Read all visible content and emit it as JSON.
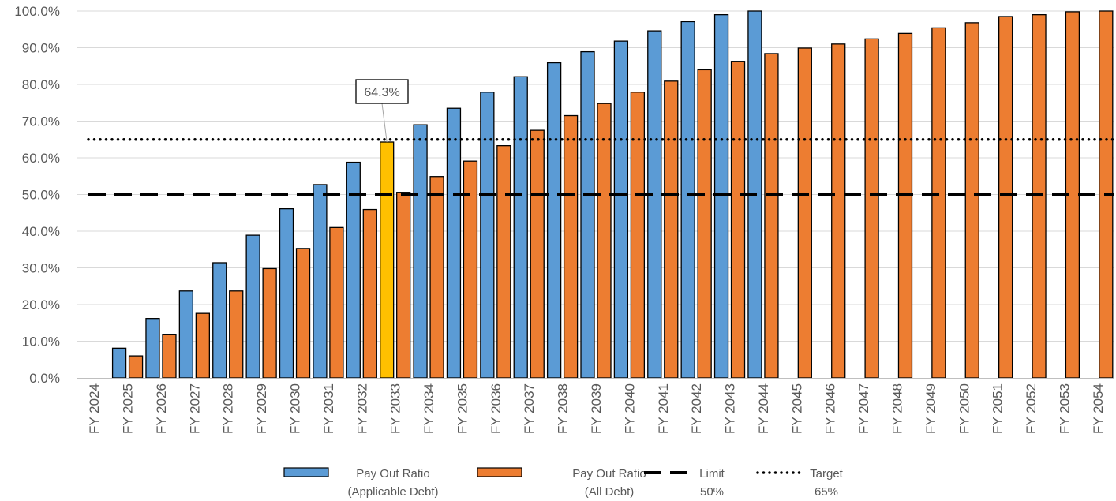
{
  "chart_data": {
    "type": "bar",
    "categories": [
      "FY 2024",
      "FY 2025",
      "FY 2026",
      "FY 2027",
      "FY 2028",
      "FY 2029",
      "FY 2030",
      "FY 2031",
      "FY 2032",
      "FY 2033",
      "FY 2034",
      "FY 2035",
      "FY 2036",
      "FY 2037",
      "FY 2038",
      "FY 2039",
      "FY 2040",
      "FY 2041",
      "FY 2042",
      "FY 2043",
      "FY 2044",
      "FY 2045",
      "FY 2046",
      "FY 2047",
      "FY 2048",
      "FY 2049",
      "FY 2050",
      "FY 2051",
      "FY 2052",
      "FY 2053",
      "FY 2054"
    ],
    "series": [
      {
        "name": "Pay Out Ratio (Applicable Debt)",
        "name_lines": [
          "Pay Out Ratio",
          "(Applicable Debt)"
        ],
        "color": "#5B9BD5",
        "highlight": {
          "category": "FY 2033",
          "color": "#FFC000"
        },
        "values": [
          null,
          8.1,
          16.2,
          23.7,
          31.4,
          38.9,
          46.1,
          52.7,
          58.8,
          64.3,
          69.0,
          73.5,
          77.9,
          82.1,
          85.9,
          88.9,
          91.8,
          94.6,
          97.1,
          99.0,
          100.0,
          null,
          null,
          null,
          null,
          null,
          null,
          null,
          null,
          null,
          null
        ]
      },
      {
        "name": "Pay Out Ratio (All Debt)",
        "name_lines": [
          "Pay Out Ratio",
          "(All Debt)"
        ],
        "color": "#ED7D31",
        "values": [
          null,
          6.0,
          11.9,
          17.6,
          23.7,
          29.8,
          35.3,
          41.0,
          45.9,
          50.6,
          54.9,
          59.1,
          63.3,
          67.5,
          71.5,
          74.8,
          77.9,
          80.9,
          84.0,
          86.3,
          88.4,
          89.9,
          91.0,
          92.4,
          93.9,
          95.4,
          96.8,
          98.5,
          99.0,
          99.8,
          100.0
        ]
      }
    ],
    "reference_lines": [
      {
        "name": "Limit 50%",
        "name_lines": [
          "Limit",
          "50%"
        ],
        "value": 50,
        "style": "dashed",
        "color": "#000000"
      },
      {
        "name": "Target 65%",
        "name_lines": [
          "Target",
          "65%"
        ],
        "value": 65,
        "style": "dotted",
        "color": "#000000"
      }
    ],
    "annotation": {
      "text": "64.3%",
      "category": "FY 2033",
      "series": 0
    },
    "yticks": [
      "0.0%",
      "10.0%",
      "20.0%",
      "30.0%",
      "40.0%",
      "50.0%",
      "60.0%",
      "70.0%",
      "80.0%",
      "90.0%",
      "100.0%"
    ],
    "ylim": [
      0,
      100
    ],
    "grid": true,
    "legend_position": "bottom",
    "title": "",
    "xlabel": "",
    "ylabel": ""
  }
}
